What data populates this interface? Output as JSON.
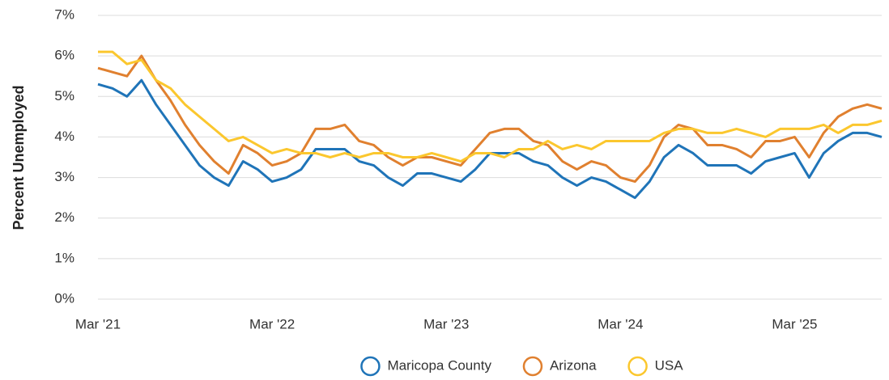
{
  "chart_data": {
    "type": "line",
    "y_label": "Percent Unemployed",
    "categories": [
      "Mar '21",
      null,
      null,
      null,
      null,
      null,
      null,
      null,
      null,
      null,
      null,
      null,
      "Mar '22",
      null,
      null,
      null,
      null,
      null,
      null,
      null,
      null,
      null,
      null,
      null,
      "Mar '23",
      null,
      null,
      null,
      null,
      null,
      null,
      null,
      null,
      null,
      null,
      null,
      "Mar '24",
      null,
      null,
      null,
      null,
      null,
      null,
      null,
      null,
      null,
      null,
      null,
      "Mar '25",
      null,
      null,
      null,
      null,
      null,
      null
    ],
    "series": [
      {
        "name": "Maricopa County",
        "color": "#1f74b8",
        "values": [
          5.3,
          5.2,
          5.0,
          5.4,
          4.8,
          4.3,
          3.8,
          3.3,
          3.0,
          2.8,
          3.4,
          3.2,
          2.9,
          3.0,
          3.2,
          3.7,
          3.7,
          3.7,
          3.4,
          3.3,
          3.0,
          2.8,
          3.1,
          3.1,
          3.0,
          2.9,
          3.2,
          3.6,
          3.6,
          3.6,
          3.4,
          3.3,
          3.0,
          2.8,
          3.0,
          2.9,
          2.7,
          2.5,
          2.9,
          3.5,
          3.8,
          3.6,
          3.3,
          3.3,
          3.3,
          3.1,
          3.4,
          3.5,
          3.6,
          3.0,
          3.6,
          3.9,
          4.1,
          4.1,
          4.0
        ]
      },
      {
        "name": "Arizona",
        "color": "#e0802f",
        "values": [
          5.7,
          5.6,
          5.5,
          6.0,
          5.4,
          4.9,
          4.3,
          3.8,
          3.4,
          3.1,
          3.8,
          3.6,
          3.3,
          3.4,
          3.6,
          4.2,
          4.2,
          4.3,
          3.9,
          3.8,
          3.5,
          3.3,
          3.5,
          3.5,
          3.4,
          3.3,
          3.7,
          4.1,
          4.2,
          4.2,
          3.9,
          3.8,
          3.4,
          3.2,
          3.4,
          3.3,
          3.0,
          2.9,
          3.3,
          4.0,
          4.3,
          4.2,
          3.8,
          3.8,
          3.7,
          3.5,
          3.9,
          3.9,
          4.0,
          3.5,
          4.1,
          4.5,
          4.7,
          4.8,
          4.7
        ]
      },
      {
        "name": "USA",
        "color": "#fbc72e",
        "values": [
          6.1,
          6.1,
          5.8,
          5.9,
          5.4,
          5.2,
          4.8,
          4.5,
          4.2,
          3.9,
          4.0,
          3.8,
          3.6,
          3.7,
          3.6,
          3.6,
          3.5,
          3.6,
          3.5,
          3.6,
          3.6,
          3.5,
          3.5,
          3.6,
          3.5,
          3.4,
          3.6,
          3.6,
          3.5,
          3.7,
          3.7,
          3.9,
          3.7,
          3.8,
          3.7,
          3.9,
          3.9,
          3.9,
          3.9,
          4.1,
          4.2,
          4.2,
          4.1,
          4.1,
          4.2,
          4.1,
          4.0,
          4.2,
          4.2,
          4.2,
          4.3,
          4.1,
          4.3,
          4.3,
          4.4
        ]
      }
    ],
    "ylim": [
      0,
      7
    ],
    "yticks": [
      {
        "value": 0,
        "label": "0%"
      },
      {
        "value": 1,
        "label": "1%"
      },
      {
        "value": 2,
        "label": "2%"
      },
      {
        "value": 3,
        "label": "3%"
      },
      {
        "value": 4,
        "label": "4%"
      },
      {
        "value": 5,
        "label": "5%"
      },
      {
        "value": 6,
        "label": "6%"
      },
      {
        "value": 7,
        "label": "7%"
      }
    ],
    "grid": true,
    "legend": "bottom"
  }
}
